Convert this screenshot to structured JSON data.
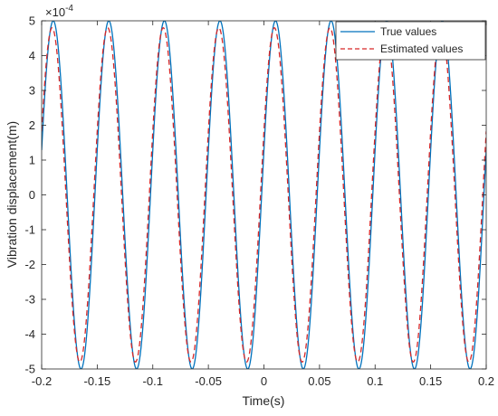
{
  "chart_data": {
    "type": "line",
    "title": "",
    "xlabel": "Time(s)",
    "ylabel": "Vibration displacement(m)",
    "xlim": [
      -0.2,
      0.2
    ],
    "ylim": [
      -5,
      5
    ],
    "y_scale_exponent": "×10",
    "y_scale_power": "-4",
    "xticks": [
      "-0.2",
      "-0.15",
      "-0.1",
      "-0.05",
      "0",
      "0.05",
      "0.1",
      "0.15",
      "0.2"
    ],
    "yticks": [
      "-5",
      "-4",
      "-3",
      "-2",
      "-1",
      "0",
      "1",
      "2",
      "3",
      "4",
      "5"
    ],
    "grid": false,
    "legend_position": "top-right",
    "series": [
      {
        "name": "True values",
        "style": "solid",
        "color": "#0072BD",
        "function": "sine",
        "amplitude": 5,
        "frequency_hz": 20,
        "phase_rad": 0.26
      },
      {
        "name": "Estimated values",
        "style": "dashed",
        "color": "#D62728",
        "function": "sine",
        "amplitude": 4.8,
        "frequency_hz": 20,
        "phase_rad": 0.39
      }
    ]
  }
}
